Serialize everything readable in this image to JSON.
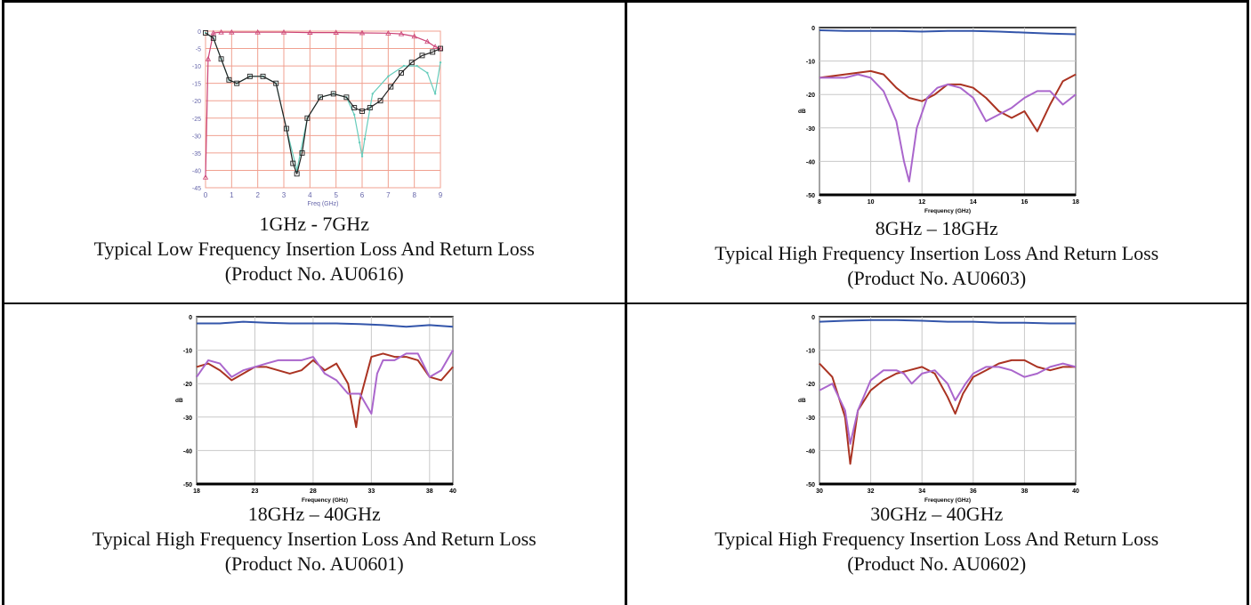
{
  "chart_data": [
    {
      "type": "line",
      "title": "",
      "xlabel": "Freq (GHz)",
      "ylabel": "",
      "xlim": [
        0,
        9
      ],
      "ylim": [
        -45,
        0
      ],
      "xticks": [
        0,
        1,
        2,
        3,
        4,
        5,
        6,
        7,
        8,
        9
      ],
      "yticks": [
        0,
        -5,
        -10,
        -15,
        -20,
        -25,
        -30,
        -35,
        -40,
        -45
      ],
      "grid": true,
      "style": "low",
      "series": [
        {
          "color": "#cc4477",
          "marker": "triangle",
          "x": [
            0,
            0.1,
            0.3,
            0.6,
            1,
            2,
            3,
            4,
            5,
            6,
            7,
            7.5,
            8,
            8.5,
            8.8,
            9
          ],
          "y": [
            -42,
            -8,
            -0.5,
            -0.3,
            -0.3,
            -0.3,
            -0.3,
            -0.4,
            -0.4,
            -0.5,
            -0.6,
            -0.8,
            -1.5,
            -3,
            -4.5,
            -5
          ]
        },
        {
          "color": "#66ccbb",
          "marker": "small",
          "x": [
            0,
            0.3,
            0.6,
            0.9,
            1.2,
            1.7,
            2.2,
            2.7,
            3.1,
            3.5,
            3.9,
            4.4,
            4.9,
            5.4,
            5.7,
            5.9,
            6.0,
            6.1,
            6.4,
            7.0,
            7.6,
            8.1,
            8.5,
            8.8,
            9
          ],
          "y": [
            -0.5,
            -2,
            -8,
            -14,
            -15,
            -13,
            -13,
            -15,
            -28,
            -40,
            -25,
            -19,
            -18,
            -19,
            -24,
            -32,
            -36,
            -31,
            -18,
            -13,
            -10,
            -10,
            -12,
            -18,
            -9
          ]
        },
        {
          "color": "#222222",
          "marker": "square",
          "x": [
            0,
            0.3,
            0.6,
            0.9,
            1.2,
            1.7,
            2.2,
            2.7,
            3.1,
            3.35,
            3.5,
            3.7,
            3.9,
            4.4,
            4.9,
            5.4,
            5.7,
            6.0,
            6.3,
            6.7,
            7.1,
            7.5,
            7.9,
            8.3,
            8.7,
            9
          ],
          "y": [
            -0.5,
            -2,
            -8,
            -14,
            -15,
            -13,
            -13,
            -15,
            -28,
            -38,
            -41,
            -35,
            -25,
            -19,
            -18,
            -19,
            -22,
            -23,
            -22,
            -20,
            -16,
            -12,
            -9,
            -7,
            -6,
            -5
          ]
        }
      ]
    },
    {
      "type": "line",
      "title": "",
      "xlabel": "Frequency (GHz)",
      "ylabel": "dB",
      "xlim": [
        8,
        18
      ],
      "ylim": [
        -50,
        0
      ],
      "xticks": [
        8,
        10,
        12,
        14,
        16,
        18
      ],
      "yticks": [
        0,
        -10,
        -20,
        -30,
        -40,
        -50
      ],
      "grid": true,
      "style": "high",
      "series": [
        {
          "color": "#3355aa",
          "x": [
            8,
            9,
            10,
            11,
            12,
            13,
            14,
            15,
            16,
            17,
            18
          ],
          "y": [
            -0.8,
            -1,
            -1,
            -1,
            -1.2,
            -1,
            -1,
            -1.2,
            -1.5,
            -1.8,
            -2
          ]
        },
        {
          "color": "#aa3322",
          "x": [
            8,
            9,
            10,
            10.5,
            11,
            11.5,
            12,
            12.5,
            13,
            13.5,
            14,
            14.5,
            15,
            15.5,
            16,
            16.5,
            17,
            17.5,
            18
          ],
          "y": [
            -15,
            -14,
            -13,
            -14,
            -18,
            -21,
            -22,
            -20,
            -17,
            -17,
            -18,
            -21,
            -25,
            -27,
            -25,
            -31,
            -23,
            -16,
            -14
          ]
        },
        {
          "color": "#aa66cc",
          "x": [
            8,
            9,
            9.5,
            10,
            10.5,
            11,
            11.3,
            11.5,
            11.8,
            12.2,
            12.6,
            13,
            13.5,
            14,
            14.5,
            15,
            15.5,
            16,
            16.5,
            17,
            17.5,
            18
          ],
          "y": [
            -15,
            -15,
            -14,
            -15,
            -19,
            -28,
            -40,
            -46,
            -30,
            -21,
            -18,
            -17,
            -18,
            -21,
            -28,
            -26,
            -24,
            -21,
            -19,
            -19,
            -23,
            -20
          ]
        }
      ]
    },
    {
      "type": "line",
      "title": "",
      "xlabel": "Frequency (GHz)",
      "ylabel": "dB",
      "xlim": [
        18,
        40
      ],
      "ylim": [
        -50,
        0
      ],
      "xticks": [
        18,
        23,
        28,
        33,
        38,
        40
      ],
      "ytickvalues": [
        0,
        -10,
        -20,
        -30,
        -40,
        -50
      ],
      "yticks": [
        0,
        -10,
        -20,
        -30,
        -40,
        -50
      ],
      "grid": true,
      "style": "high",
      "series": [
        {
          "color": "#3355aa",
          "x": [
            18,
            20,
            22,
            24,
            26,
            28,
            30,
            32,
            34,
            36,
            38,
            40
          ],
          "y": [
            -2,
            -2,
            -1.5,
            -1.8,
            -2,
            -2,
            -2,
            -2.2,
            -2.5,
            -3,
            -2.5,
            -3
          ]
        },
        {
          "color": "#aa3322",
          "x": [
            18,
            19,
            20,
            21,
            22,
            23,
            24,
            25,
            26,
            27,
            28,
            29,
            30,
            31,
            31.7,
            32,
            33,
            34,
            35,
            36,
            37,
            38,
            39,
            40
          ],
          "y": [
            -15,
            -14,
            -16,
            -19,
            -17,
            -15,
            -15,
            -16,
            -17,
            -16,
            -13,
            -16,
            -14,
            -20,
            -33,
            -25,
            -12,
            -11,
            -12,
            -12,
            -13,
            -18,
            -19,
            -15
          ]
        },
        {
          "color": "#aa66cc",
          "x": [
            18,
            19,
            20,
            21,
            22,
            23,
            24,
            25,
            26,
            27,
            28,
            29,
            30,
            31,
            32,
            32.5,
            33,
            33.5,
            34,
            35,
            36,
            37,
            38,
            39,
            40
          ],
          "y": [
            -18,
            -13,
            -14,
            -18,
            -16,
            -15,
            -14,
            -13,
            -13,
            -13,
            -12,
            -17,
            -19,
            -23,
            -23,
            -26,
            -29,
            -17,
            -13,
            -13,
            -11,
            -11,
            -18,
            -16,
            -10
          ]
        }
      ]
    },
    {
      "type": "line",
      "title": "",
      "xlabel": "Frequency (GHz)",
      "ylabel": "dB",
      "xlim": [
        30,
        40
      ],
      "ylim": [
        -50,
        0
      ],
      "xticks": [
        30,
        32,
        34,
        36,
        38,
        40
      ],
      "yticks": [
        0,
        -10,
        -20,
        -30,
        -40,
        -50
      ],
      "grid": true,
      "style": "high",
      "series": [
        {
          "color": "#3355aa",
          "x": [
            30,
            31,
            32,
            33,
            34,
            35,
            36,
            37,
            38,
            39,
            40
          ],
          "y": [
            -1.5,
            -1.2,
            -1,
            -1,
            -1.2,
            -1.5,
            -1.5,
            -1.8,
            -1.8,
            -2,
            -2
          ]
        },
        {
          "color": "#aa3322",
          "x": [
            30,
            30.5,
            31,
            31.2,
            31.5,
            32,
            32.5,
            33,
            33.5,
            34,
            34.5,
            35,
            35.3,
            35.6,
            36,
            36.5,
            37,
            37.5,
            38,
            38.5,
            39,
            39.5,
            40
          ],
          "y": [
            -14,
            -18,
            -30,
            -44,
            -28,
            -22,
            -19,
            -17,
            -16,
            -15,
            -17,
            -24,
            -29,
            -23,
            -18,
            -16,
            -14,
            -13,
            -13,
            -15,
            -16,
            -15,
            -15
          ]
        },
        {
          "color": "#aa66cc",
          "x": [
            30,
            30.5,
            31,
            31.2,
            31.5,
            32,
            32.5,
            33,
            33.3,
            33.6,
            34,
            34.5,
            35,
            35.3,
            35.7,
            36,
            36.5,
            37,
            37.5,
            38,
            38.5,
            39,
            39.5,
            40
          ],
          "y": [
            -22,
            -20,
            -28,
            -38,
            -28,
            -19,
            -16,
            -16,
            -17,
            -20,
            -17,
            -16,
            -20,
            -25,
            -20,
            -17,
            -15,
            -15,
            -16,
            -18,
            -17,
            -15,
            -14,
            -15
          ]
        }
      ]
    }
  ],
  "captions": [
    {
      "range": "1GHz - 7GHz",
      "desc": "Typical Low Frequency Insertion Loss And Return Loss",
      "product": "(Product No. AU0616)"
    },
    {
      "range": "8GHz – 18GHz",
      "desc": "Typical High Frequency Insertion Loss And Return Loss",
      "product": "(Product No. AU0603)"
    },
    {
      "range": "18GHz – 40GHz",
      "desc": "Typical High Frequency Insertion Loss And Return Loss",
      "product": "(Product No. AU0601)"
    },
    {
      "range": "30GHz – 40GHz",
      "desc": "Typical High Frequency Insertion Loss And Return Loss",
      "product": "(Product No. AU0602)"
    }
  ]
}
